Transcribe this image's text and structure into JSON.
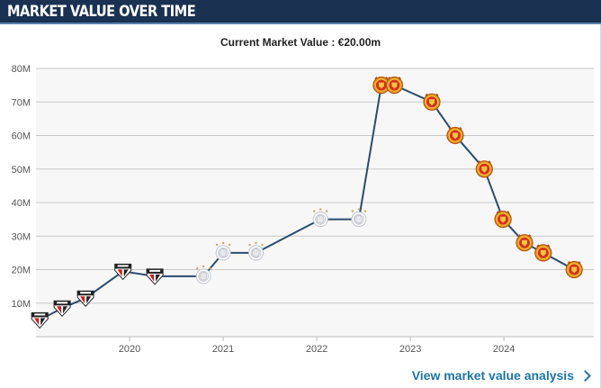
{
  "header": {
    "title": "MARKET VALUE OVER TIME"
  },
  "subtitle": "Current Market Value : €20.00m",
  "footer": {
    "link_label": "View market value analysis"
  },
  "colors": {
    "header_bg": "#1a3151",
    "line": "#2b4c6f",
    "plot_bg": "#f7f7f7",
    "grid": "#c8c8c8",
    "link": "#1d75a3"
  },
  "chart_data": {
    "type": "line",
    "title": "",
    "xlabel": "",
    "ylabel": "",
    "ylim": [
      0,
      80
    ],
    "yticks": [
      10,
      20,
      30,
      40,
      50,
      60,
      70,
      80
    ],
    "ytick_labels": [
      "10M",
      "20M",
      "30M",
      "40M",
      "50M",
      "60M",
      "70M",
      "80M"
    ],
    "xticks": [
      2020,
      2021,
      2022,
      2023,
      2024
    ],
    "xtick_labels": [
      "2020",
      "2021",
      "2022",
      "2023",
      "2024"
    ],
    "grid": true,
    "series": [
      {
        "points": [
          {
            "x": 2019.04,
            "y": 5,
            "club": "sao-paulo-badge-icon"
          },
          {
            "x": 2019.28,
            "y": 8.5,
            "club": "sao-paulo-badge-icon"
          },
          {
            "x": 2019.53,
            "y": 11.5,
            "club": "sao-paulo-badge-icon"
          },
          {
            "x": 2019.93,
            "y": 19.5,
            "club": "sao-paulo-badge-icon"
          },
          {
            "x": 2020.27,
            "y": 18,
            "club": "sao-paulo-badge-icon"
          },
          {
            "x": 2020.79,
            "y": 18,
            "club": "ajax-badge-icon"
          },
          {
            "x": 2021.0,
            "y": 25,
            "club": "ajax-badge-icon"
          },
          {
            "x": 2021.35,
            "y": 25,
            "club": "ajax-badge-icon"
          },
          {
            "x": 2022.04,
            "y": 35,
            "club": "ajax-badge-icon"
          },
          {
            "x": 2022.45,
            "y": 35,
            "club": "ajax-badge-icon"
          },
          {
            "x": 2022.69,
            "y": 75,
            "club": "man-utd-badge-icon"
          },
          {
            "x": 2022.83,
            "y": 75,
            "club": "man-utd-badge-icon"
          },
          {
            "x": 2023.23,
            "y": 70,
            "club": "man-utd-badge-icon"
          },
          {
            "x": 2023.48,
            "y": 60,
            "club": "man-utd-badge-icon"
          },
          {
            "x": 2023.79,
            "y": 50,
            "club": "man-utd-badge-icon"
          },
          {
            "x": 2023.99,
            "y": 35,
            "club": "man-utd-badge-icon"
          },
          {
            "x": 2024.22,
            "y": 28,
            "club": "man-utd-badge-icon"
          },
          {
            "x": 2024.42,
            "y": 25,
            "club": "man-utd-badge-icon"
          },
          {
            "x": 2024.75,
            "y": 20,
            "club": "man-utd-badge-icon"
          }
        ]
      }
    ]
  }
}
